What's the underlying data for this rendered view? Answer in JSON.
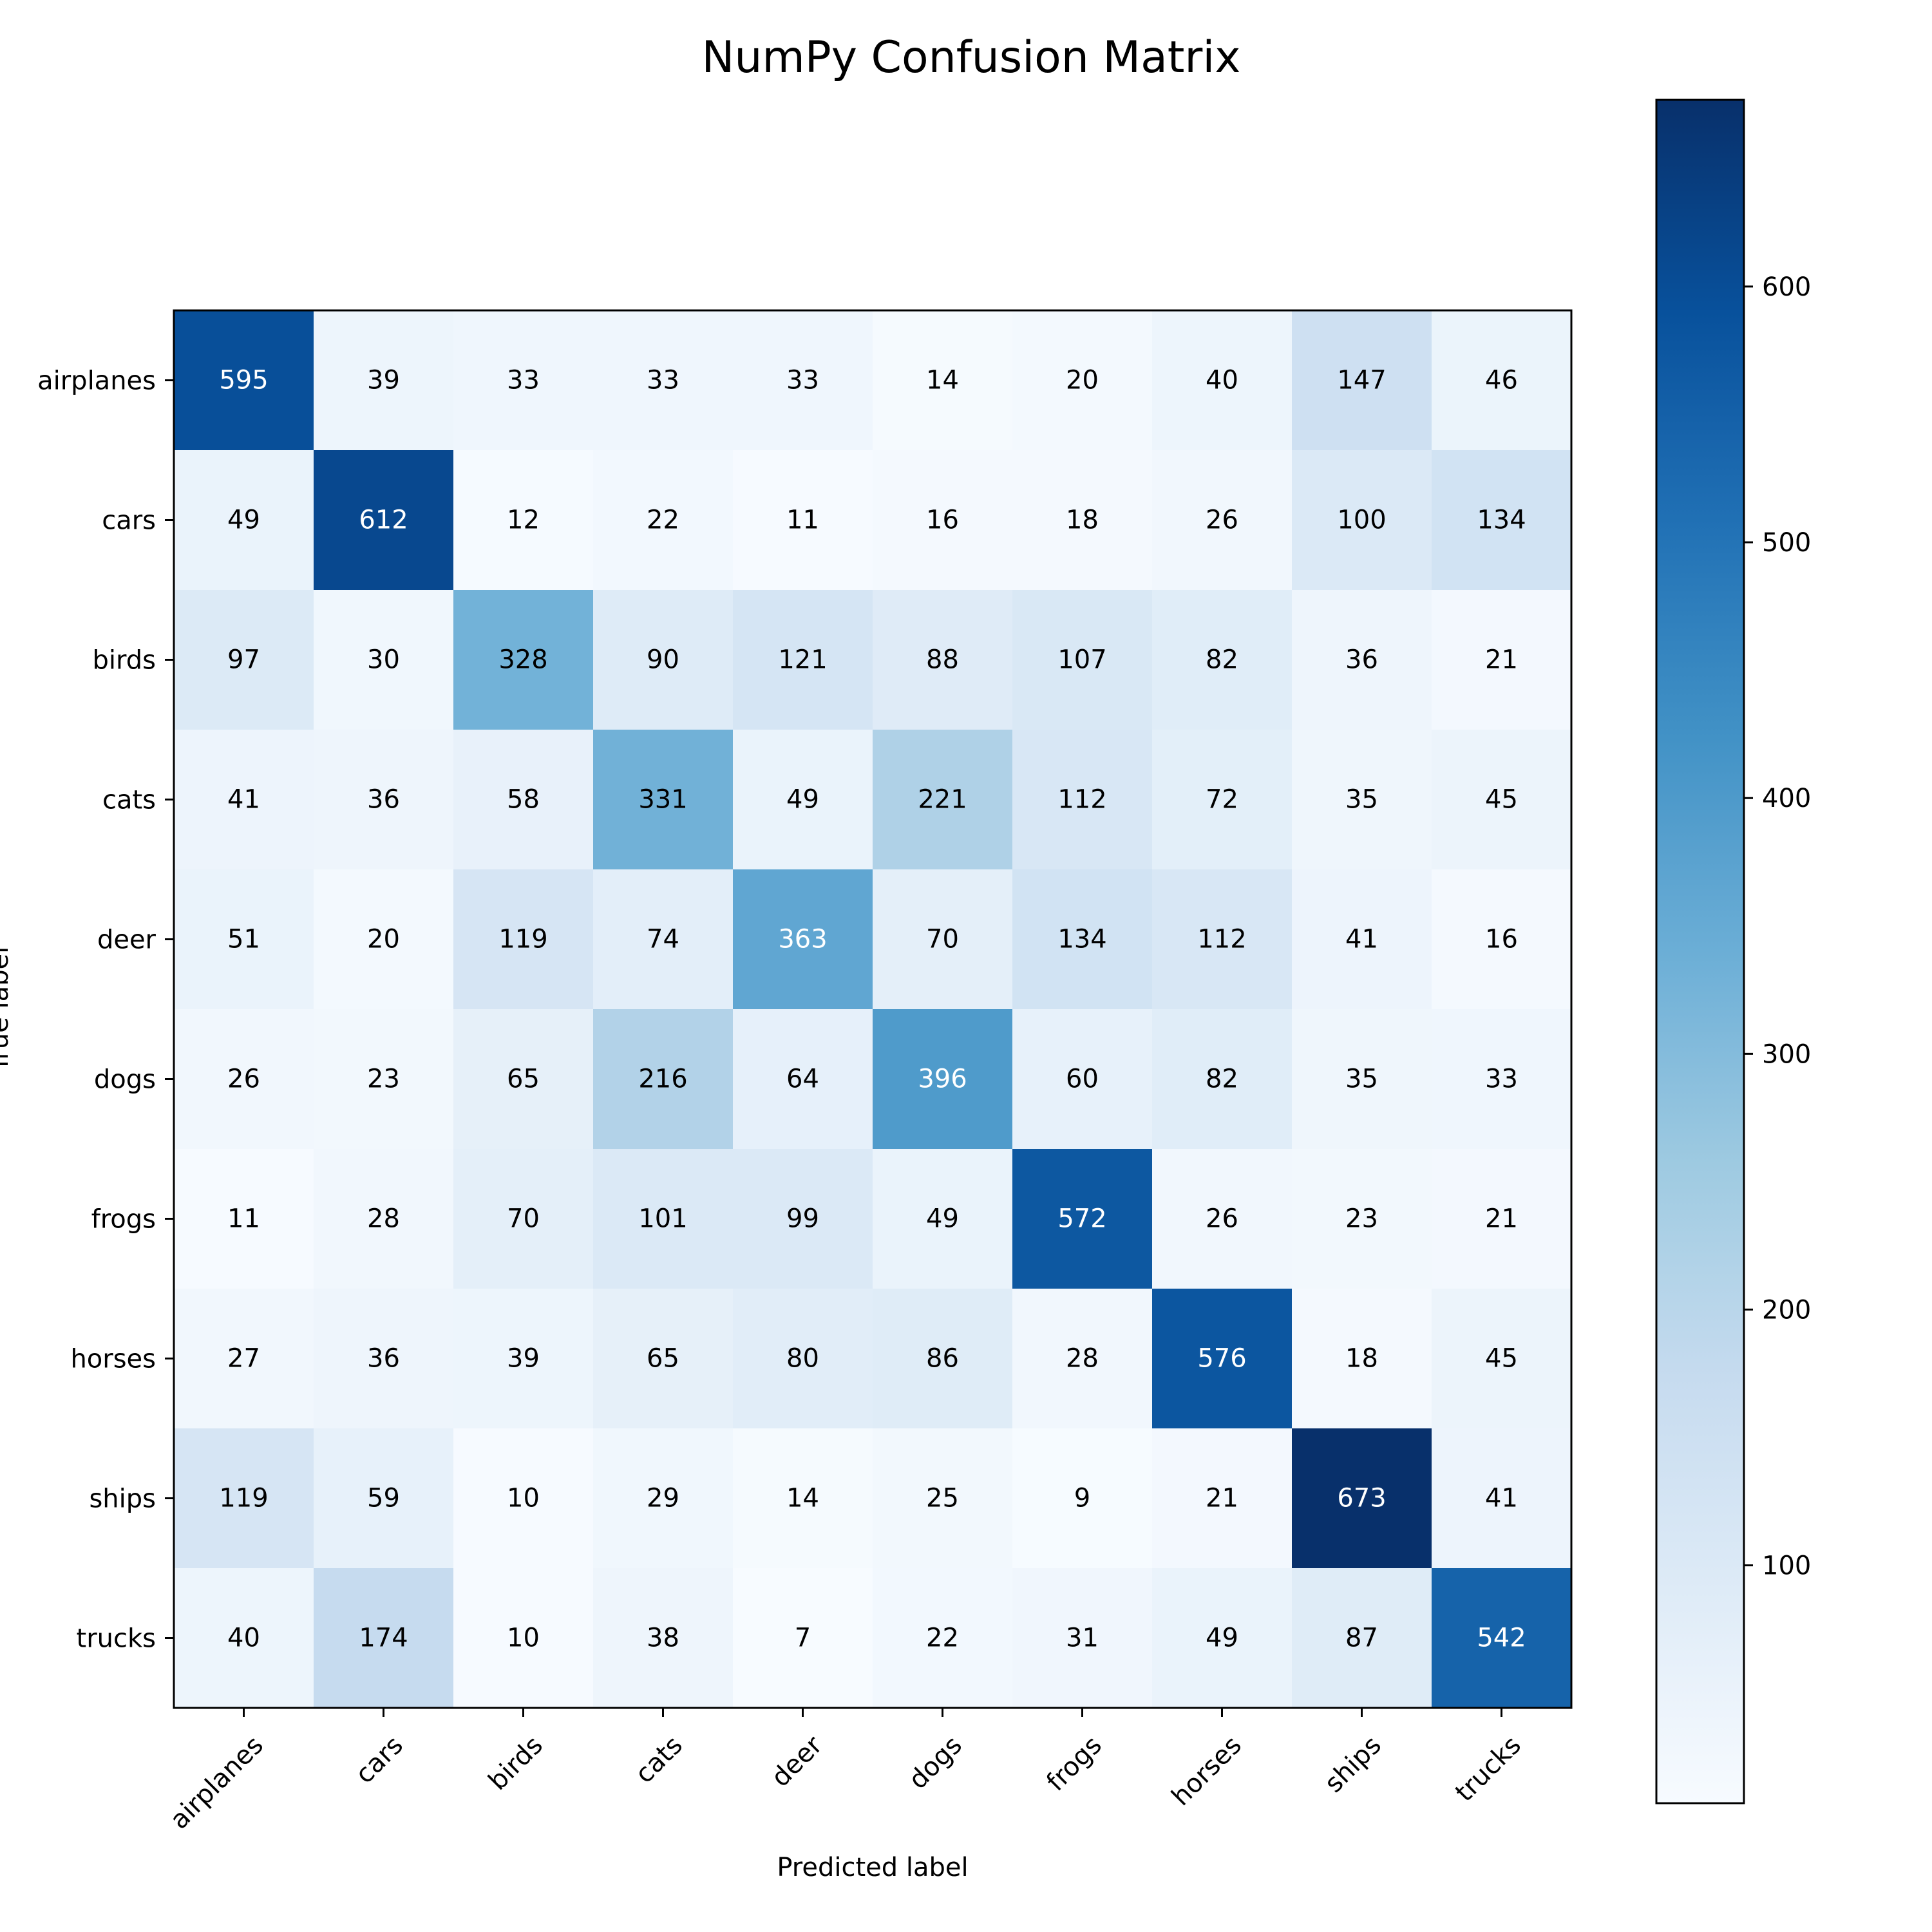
{
  "chart_data": {
    "type": "heatmap",
    "title": "NumPy Confusion Matrix",
    "xlabel": "Predicted label",
    "ylabel": "True label",
    "x_categories": [
      "airplanes",
      "cars",
      "birds",
      "cats",
      "deer",
      "dogs",
      "frogs",
      "horses",
      "ships",
      "trucks"
    ],
    "y_categories": [
      "airplanes",
      "cars",
      "birds",
      "cats",
      "deer",
      "dogs",
      "frogs",
      "horses",
      "ships",
      "trucks"
    ],
    "values": [
      [
        595,
        39,
        33,
        33,
        33,
        14,
        20,
        40,
        147,
        46
      ],
      [
        49,
        612,
        12,
        22,
        11,
        16,
        18,
        26,
        100,
        134
      ],
      [
        97,
        30,
        328,
        90,
        121,
        88,
        107,
        82,
        36,
        21
      ],
      [
        41,
        36,
        58,
        331,
        49,
        221,
        112,
        72,
        35,
        45
      ],
      [
        51,
        20,
        119,
        74,
        363,
        70,
        134,
        112,
        41,
        16
      ],
      [
        26,
        23,
        65,
        216,
        64,
        396,
        60,
        82,
        35,
        33
      ],
      [
        11,
        28,
        70,
        101,
        99,
        49,
        572,
        26,
        23,
        21
      ],
      [
        27,
        36,
        39,
        65,
        80,
        86,
        28,
        576,
        18,
        45
      ],
      [
        119,
        59,
        10,
        29,
        14,
        25,
        9,
        21,
        673,
        41
      ],
      [
        40,
        174,
        10,
        38,
        7,
        22,
        31,
        49,
        87,
        542
      ]
    ],
    "colormap": "Blues",
    "color_range": [
      7,
      673
    ],
    "colorbar": {
      "ticks": [
        100,
        200,
        300,
        400,
        500,
        600
      ],
      "location": "right"
    },
    "text_color_light": "#ffffff",
    "text_color_dark": "#000000",
    "grid": false
  }
}
